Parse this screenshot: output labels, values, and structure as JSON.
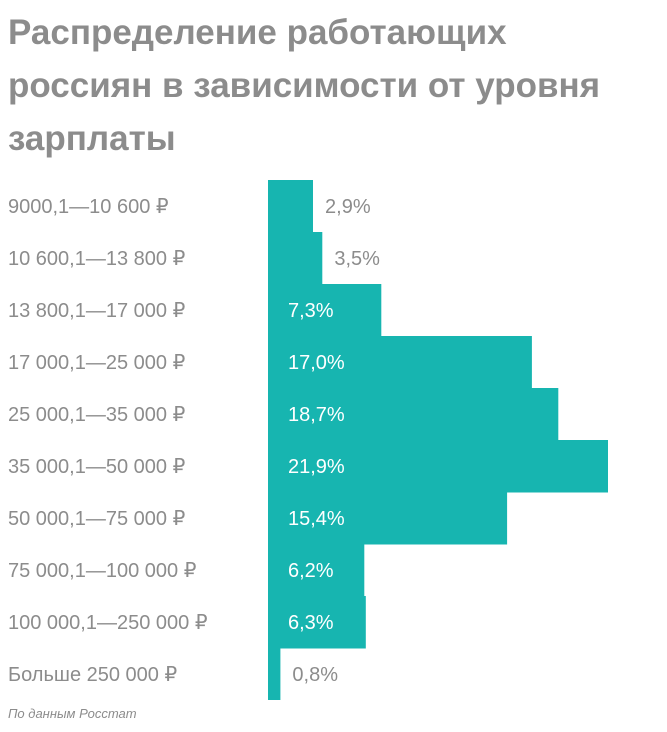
{
  "title": "Распределение работающих россиян в зависимости от уровня зарплаты",
  "source": "По данным Росстат",
  "colors": {
    "bar": "#17b5b0",
    "text": "#8c8c8c",
    "label_inside": "#ffffff"
  },
  "chart_data": {
    "type": "bar",
    "orientation": "horizontal",
    "grid": false,
    "categories": [
      "9000,1—10 600 ₽",
      "10 600,1—13 800 ₽",
      "13 800,1—17 000 ₽",
      "17 000,1—25 000 ₽",
      "25 000,1—35 000 ₽",
      "35 000,1—50 000 ₽",
      "50 000,1—75 000 ₽",
      "75 000,1—100 000 ₽",
      "100 000,1—250 000 ₽",
      "Больше 250 000 ₽"
    ],
    "values": [
      2.9,
      3.5,
      7.3,
      17.0,
      18.7,
      21.9,
      15.4,
      6.2,
      6.3,
      0.8
    ],
    "value_labels": [
      "2,9%",
      "3,5%",
      "7,3%",
      "17,0%",
      "18,7%",
      "21,9%",
      "15,4%",
      "6,2%",
      "6,3%",
      "0,8%"
    ],
    "xlim": [
      0,
      21.9
    ]
  }
}
